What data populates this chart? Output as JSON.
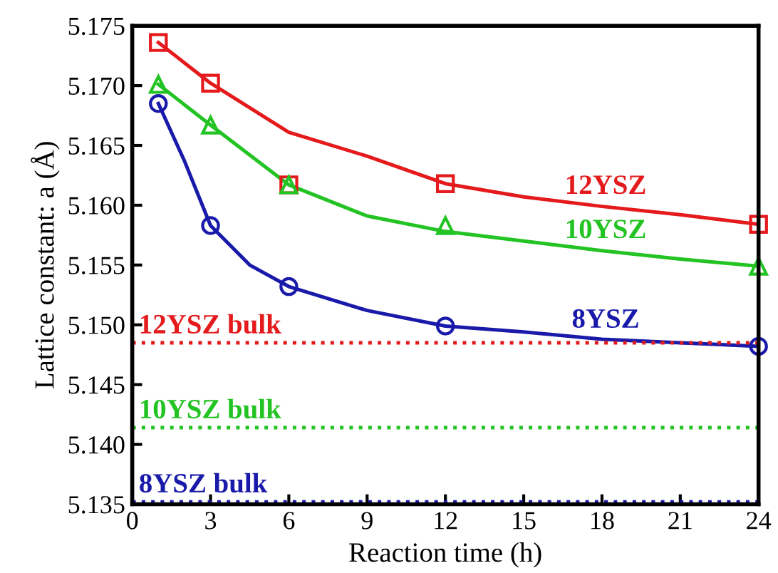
{
  "chart_data": {
    "type": "line",
    "xlabel": "Reaction time (h)",
    "ylabel": "Lattice constant: a (Å)",
    "x": [
      1,
      3,
      6,
      12,
      24
    ],
    "series": [
      {
        "name": "12YSZ",
        "color": "#e41a1c",
        "x": [
          1,
          2,
          3,
          6,
          9,
          12,
          15,
          18,
          21,
          24
        ],
        "values": [
          5.1736,
          5.1719,
          5.1702,
          5.1661,
          5.1641,
          5.1618,
          5.1607,
          5.1599,
          5.1592,
          5.1584
        ]
      },
      {
        "name": "10YSZ",
        "color": "#22c322",
        "x": [
          1,
          2,
          3,
          6,
          9,
          12,
          15,
          18,
          21,
          24
        ],
        "values": [
          5.1701,
          5.1684,
          5.1667,
          5.1617,
          5.1591,
          5.1578,
          5.157,
          5.1562,
          5.1555,
          5.1549
        ]
      },
      {
        "name": "8YSZ",
        "color": "#1a1aaa",
        "x": [
          1,
          2,
          3,
          4.5,
          6,
          9,
          12,
          15,
          18,
          21,
          24
        ],
        "values": [
          5.1685,
          5.1637,
          5.1583,
          5.155,
          5.1532,
          5.1512,
          5.1499,
          5.1494,
          5.1488,
          5.1485,
          5.1482
        ]
      },
      {
        "type": "scatter",
        "color": "#e41a1c",
        "marker": "square",
        "values": [
          5.1736,
          5.1702,
          5.1617,
          5.1618,
          5.1584
        ]
      },
      {
        "type": "scatter",
        "color": "#22c322",
        "marker": "triangle",
        "values": [
          5.1701,
          5.1667,
          5.1617,
          5.1583,
          5.1549
        ]
      },
      {
        "type": "scatter",
        "color": "#1a1aaa",
        "marker": "circle",
        "values": [
          5.1685,
          5.1583,
          5.1532,
          5.1499,
          5.1482
        ]
      }
    ],
    "ref_lines": [
      {
        "axis": "y",
        "value": 5.1485,
        "label": "12YSZ bulk",
        "color": "#e41a1c",
        "line_style": "dotted"
      },
      {
        "axis": "y",
        "value": 5.1414,
        "label": "10YSZ bulk",
        "color": "#22c322",
        "line_style": "dotted"
      },
      {
        "axis": "y",
        "value": 5.1352,
        "label": "8YSZ bulk",
        "color": "#1a1aaa",
        "line_style": "dotted"
      }
    ],
    "xlim": [
      0,
      24
    ],
    "xticks": [
      0,
      3,
      6,
      9,
      12,
      15,
      18,
      21,
      24
    ],
    "ylim": [
      5.135,
      5.175
    ],
    "yticks": [
      {
        "value": 5.135,
        "label": "5.135"
      },
      {
        "value": 5.14,
        "label": "5.140"
      },
      {
        "value": 5.145,
        "label": "5.145"
      },
      {
        "value": 5.15,
        "label": "5.150"
      },
      {
        "value": 5.155,
        "label": "5.155"
      },
      {
        "value": 5.16,
        "label": "5.160"
      },
      {
        "value": 5.165,
        "label": "5.165"
      },
      {
        "value": 5.17,
        "label": "5.170"
      },
      {
        "value": 5.175,
        "label": "5.175"
      }
    ],
    "grid": false,
    "legend": false,
    "line_style": "solid"
  }
}
